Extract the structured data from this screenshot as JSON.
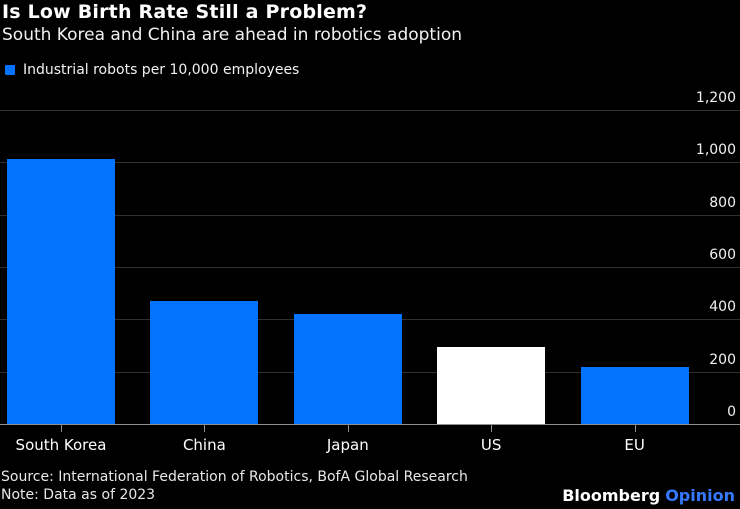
{
  "header": {
    "title": "Is Low Birth Rate Still a Problem?",
    "subtitle": "South Korea and China are ahead in robotics adoption"
  },
  "legend": {
    "label": "Industrial robots per 10,000 employees",
    "swatch_color": "#0673ff"
  },
  "chart_data": {
    "type": "bar",
    "title": "Is Low Birth Rate Still a Problem?",
    "subtitle": "South Korea and China are ahead in robotics adoption",
    "series_label": "Industrial robots per 10,000 employees",
    "categories": [
      "South Korea",
      "China",
      "Japan",
      "US",
      "EU"
    ],
    "values": [
      1012,
      470,
      419,
      295,
      219
    ],
    "bar_colors": [
      "#0673ff",
      "#0673ff",
      "#0673ff",
      "#ffffff",
      "#0673ff"
    ],
    "xlabel": "",
    "ylabel": "",
    "ylim": [
      0,
      1200
    ],
    "yticks": [
      {
        "value": 0,
        "label": "0"
      },
      {
        "value": 200,
        "label": "200"
      },
      {
        "value": 400,
        "label": "400"
      },
      {
        "value": 600,
        "label": "600"
      },
      {
        "value": 800,
        "label": "800"
      },
      {
        "value": 1000,
        "label": "1,000"
      },
      {
        "value": 1200,
        "label": "1,200"
      }
    ],
    "grid": "horizontal",
    "axis_side": "right",
    "legend_position": "top-left",
    "background_color": "#000000"
  },
  "footer": {
    "source": "Source: International Federation of Robotics, BofA Global Research",
    "note": "Note: Data as of 2023",
    "brand": "Bloomberg",
    "brand_suffix": "Opinion",
    "brand_suffix_color": "#3479ff"
  }
}
